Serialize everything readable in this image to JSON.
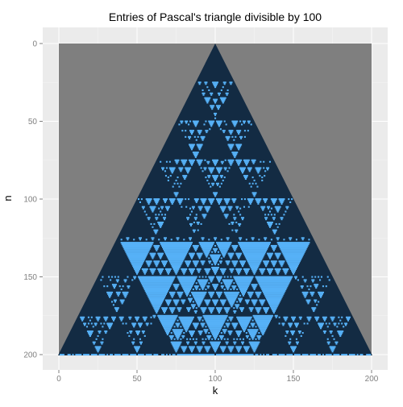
{
  "chart_data": {
    "type": "heatmap",
    "title": "Entries of Pascal's triangle divisible by 100",
    "xlabel": "k",
    "ylabel": "n",
    "xlim": [
      0,
      200
    ],
    "ylim": [
      0,
      200
    ],
    "y_reversed": true,
    "x_ticks": [
      0,
      50,
      100,
      150,
      200
    ],
    "y_ticks": [
      0,
      50,
      100,
      150,
      200
    ],
    "rows": {
      "n_from": 0,
      "n_to": 200
    },
    "cell_rule": "binomial(n, k) mod 100 == 0 marks the divisible entries",
    "grid": true,
    "legend": "none",
    "colors": {
      "divisible": "#56b1f7",
      "not_divisible": "#132b43",
      "outside_triangle": "#7f7f7f",
      "panel_background": "#ebebeb",
      "grid": "#ffffff"
    }
  }
}
